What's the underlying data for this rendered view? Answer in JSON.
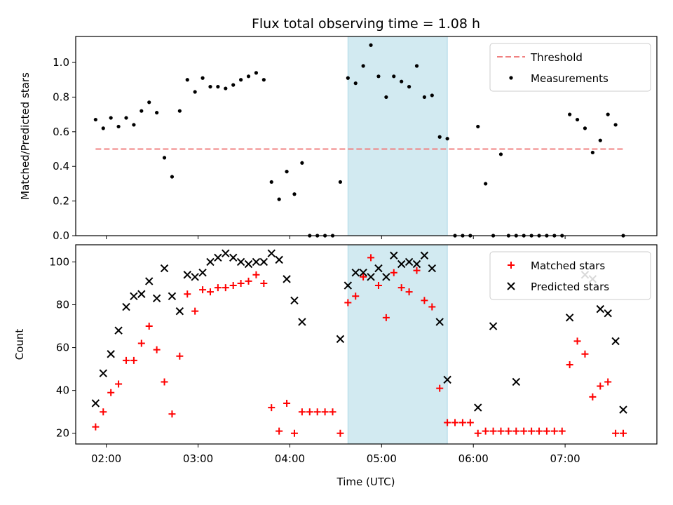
{
  "figure": {
    "title": "Flux total observing time = 1.08 h",
    "xlabel": "Time (UTC)",
    "highlight_span": [
      "04:38",
      "05:43"
    ],
    "colors": {
      "threshold": "#f08080",
      "measurement": "#000000",
      "matched": "#ff0000",
      "predicted": "#000000",
      "highlight": "#add8e6"
    }
  },
  "chart_data": [
    {
      "type": "scatter",
      "ylabel": "Matched/Predicted stars",
      "xlim": [
        "01:40",
        "08:00"
      ],
      "ylim": [
        0,
        1.15
      ],
      "yticks": [
        "0.0",
        "0.2",
        "0.4",
        "0.6",
        "0.8",
        "1.0"
      ],
      "legend_position": "top-right",
      "threshold": {
        "name": "Threshold",
        "y": 0.5,
        "x": [
          "01:53",
          "07:38"
        ]
      },
      "series": [
        {
          "name": "Measurements",
          "x": [
            "01:53",
            "01:58",
            "02:03",
            "02:08",
            "02:13",
            "02:18",
            "02:23",
            "02:28",
            "02:33",
            "02:38",
            "02:43",
            "02:48",
            "02:53",
            "02:58",
            "03:03",
            "03:08",
            "03:13",
            "03:18",
            "03:23",
            "03:28",
            "03:33",
            "03:38",
            "03:43",
            "03:48",
            "03:53",
            "03:58",
            "04:03",
            "04:08",
            "04:13",
            "04:18",
            "04:23",
            "04:28",
            "04:33",
            "04:38",
            "04:43",
            "04:48",
            "04:53",
            "04:58",
            "05:03",
            "05:08",
            "05:13",
            "05:18",
            "05:23",
            "05:28",
            "05:33",
            "05:38",
            "05:43",
            "05:48",
            "05:53",
            "05:58",
            "06:03",
            "06:08",
            "06:13",
            "06:18",
            "06:23",
            "06:28",
            "06:33",
            "06:38",
            "06:43",
            "06:48",
            "06:53",
            "06:58",
            "07:03",
            "07:08",
            "07:13",
            "07:18",
            "07:23",
            "07:28",
            "07:33",
            "07:38"
          ],
          "y": [
            0.67,
            0.62,
            0.68,
            0.63,
            0.68,
            0.64,
            0.72,
            0.77,
            0.71,
            0.45,
            0.34,
            0.72,
            0.9,
            0.83,
            0.91,
            0.86,
            0.86,
            0.85,
            0.87,
            0.9,
            0.92,
            0.94,
            0.9,
            0.31,
            0.21,
            0.37,
            0.24,
            0.42,
            0.0,
            0.0,
            0.0,
            0.0,
            0.31,
            0.91,
            0.88,
            0.98,
            1.1,
            0.92,
            0.8,
            0.92,
            0.89,
            0.86,
            0.98,
            0.8,
            0.81,
            0.57,
            0.56,
            0.0,
            0.0,
            0.0,
            0.63,
            0.3,
            0.0,
            0.47,
            0.0,
            0.0,
            0.0,
            0.0,
            0.0,
            0.0,
            0.0,
            0.0,
            0.7,
            0.67,
            0.62,
            0.48,
            0.55,
            0.7,
            0.64,
            0.0
          ]
        }
      ]
    },
    {
      "type": "scatter",
      "ylabel": "Count",
      "xlim": [
        "01:40",
        "08:00"
      ],
      "ylim": [
        15,
        108
      ],
      "yticks": [
        "20",
        "40",
        "60",
        "80",
        "100"
      ],
      "xticks": [
        "02:00",
        "03:00",
        "04:00",
        "05:00",
        "06:00",
        "07:00"
      ],
      "legend_position": "top-right",
      "series": [
        {
          "name": "Matched stars",
          "marker": "+",
          "x": [
            "01:53",
            "01:58",
            "02:03",
            "02:08",
            "02:13",
            "02:18",
            "02:23",
            "02:28",
            "02:33",
            "02:38",
            "02:43",
            "02:48",
            "02:53",
            "02:58",
            "03:03",
            "03:08",
            "03:13",
            "03:18",
            "03:23",
            "03:28",
            "03:33",
            "03:38",
            "03:43",
            "03:48",
            "03:53",
            "03:58",
            "04:03",
            "04:08",
            "04:13",
            "04:18",
            "04:23",
            "04:28",
            "04:33",
            "04:38",
            "04:43",
            "04:48",
            "04:53",
            "04:58",
            "05:03",
            "05:08",
            "05:13",
            "05:18",
            "05:23",
            "05:28",
            "05:33",
            "05:38",
            "05:43",
            "05:48",
            "05:53",
            "05:58",
            "06:03",
            "06:08",
            "06:13",
            "06:18",
            "06:23",
            "06:28",
            "06:33",
            "06:38",
            "06:43",
            "06:48",
            "06:53",
            "06:58",
            "07:03",
            "07:08",
            "07:13",
            "07:18",
            "07:23",
            "07:28",
            "07:33",
            "07:38"
          ],
          "y": [
            23,
            30,
            39,
            43,
            54,
            54,
            62,
            70,
            59,
            44,
            29,
            56,
            85,
            77,
            87,
            86,
            88,
            88,
            89,
            90,
            91,
            94,
            90,
            32,
            21,
            34,
            20,
            30,
            30,
            30,
            30,
            30,
            20,
            81,
            84,
            93,
            102,
            89,
            74,
            95,
            88,
            86,
            96,
            82,
            79,
            41,
            25,
            25,
            25,
            25,
            20,
            21,
            21,
            21,
            21,
            21,
            21,
            21,
            21,
            21,
            21,
            21,
            52,
            63,
            57,
            37,
            42,
            44,
            20,
            20
          ]
        },
        {
          "name": "Predicted stars",
          "marker": "x",
          "x": [
            "01:53",
            "01:58",
            "02:03",
            "02:08",
            "02:13",
            "02:18",
            "02:23",
            "02:28",
            "02:33",
            "02:38",
            "02:43",
            "02:48",
            "02:53",
            "02:58",
            "03:03",
            "03:08",
            "03:13",
            "03:18",
            "03:23",
            "03:28",
            "03:33",
            "03:38",
            "03:43",
            "03:48",
            "03:53",
            "03:58",
            "04:03",
            "04:08",
            "04:33",
            "04:38",
            "04:43",
            "04:48",
            "04:53",
            "04:58",
            "05:03",
            "05:08",
            "05:13",
            "05:18",
            "05:23",
            "05:28",
            "05:33",
            "05:38",
            "05:43",
            "06:03",
            "06:13",
            "06:28",
            "07:03",
            "07:13",
            "07:18",
            "07:23",
            "07:28",
            "07:33",
            "07:38"
          ],
          "y": [
            34,
            48,
            57,
            68,
            79,
            84,
            85,
            91,
            83,
            97,
            84,
            77,
            94,
            93,
            95,
            100,
            102,
            104,
            102,
            100,
            99,
            100,
            100,
            104,
            101,
            92,
            82,
            72,
            64,
            89,
            95,
            95,
            93,
            97,
            93,
            103,
            99,
            100,
            99,
            103,
            97,
            72,
            45,
            32,
            70,
            44,
            74,
            94,
            92,
            78,
            76,
            63,
            31
          ]
        }
      ]
    }
  ]
}
